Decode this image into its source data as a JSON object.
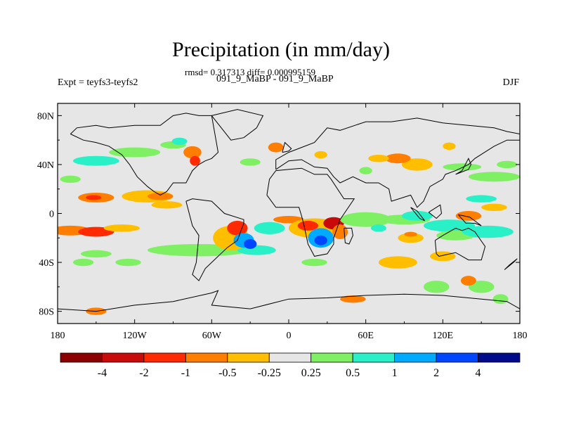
{
  "chart_data": {
    "type": "heatmap",
    "title": "Precipitation (in mm/day)",
    "subtitle": "rmsd= 0.317313 diff= 0.000995159",
    "left_label": "Expt = teyfs3-teyfs2",
    "center_label": "091_9_MaBP - 091_9_MaBP",
    "right_label": "DJF",
    "xlim": [
      -180,
      180
    ],
    "ylim": [
      -90,
      90
    ],
    "x_ticks": [
      {
        "value": -180,
        "label": "180"
      },
      {
        "value": -120,
        "label": "120W"
      },
      {
        "value": -60,
        "label": "60W"
      },
      {
        "value": 0,
        "label": "0"
      },
      {
        "value": 60,
        "label": "60E"
      },
      {
        "value": 120,
        "label": "120E"
      },
      {
        "value": 180,
        "label": "180"
      }
    ],
    "y_ticks": [
      {
        "value": 80,
        "label": "80N"
      },
      {
        "value": 40,
        "label": "40N"
      },
      {
        "value": 0,
        "label": "0"
      },
      {
        "value": -40,
        "label": "40S"
      },
      {
        "value": -80,
        "label": "80S"
      }
    ],
    "colorbar": {
      "colors": [
        "#8b0000",
        "#c80a0a",
        "#ff2a00",
        "#ff7e00",
        "#ffbe00",
        "#e6e6e6",
        "#7ff064",
        "#2af0c8",
        "#00aaff",
        "#0045ff",
        "#000a8b"
      ],
      "labels": [
        "-4",
        "-2",
        "-1",
        "-0.5",
        "-0.25",
        "0.25",
        "0.5",
        "1",
        "2",
        "4"
      ]
    },
    "background_color": "#e6e6e6",
    "anomaly_patches": [
      {
        "lon": -170,
        "lat": -14,
        "rx": 16,
        "ry": 4,
        "level": 3
      },
      {
        "lon": -150,
        "lat": -15,
        "rx": 14,
        "ry": 4,
        "level": 2
      },
      {
        "lon": -130,
        "lat": -12,
        "rx": 14,
        "ry": 3,
        "level": 4
      },
      {
        "lon": -150,
        "lat": 13,
        "rx": 14,
        "ry": 4,
        "level": 3
      },
      {
        "lon": -152,
        "lat": 13,
        "rx": 6,
        "ry": 2,
        "level": 2
      },
      {
        "lon": -110,
        "lat": 14,
        "rx": 20,
        "ry": 5,
        "level": 4
      },
      {
        "lon": -100,
        "lat": 14,
        "rx": 10,
        "ry": 3,
        "level": 3
      },
      {
        "lon": -95,
        "lat": 7,
        "rx": 12,
        "ry": 3,
        "level": 4
      },
      {
        "lon": -170,
        "lat": 28,
        "rx": 8,
        "ry": 3,
        "level": 6
      },
      {
        "lon": -150,
        "lat": 43,
        "rx": 18,
        "ry": 4,
        "level": 7
      },
      {
        "lon": -120,
        "lat": 50,
        "rx": 20,
        "ry": 4,
        "level": 6
      },
      {
        "lon": -90,
        "lat": 56,
        "rx": 10,
        "ry": 3,
        "level": 6
      },
      {
        "lon": -75,
        "lat": 50,
        "rx": 7,
        "ry": 5,
        "level": 3
      },
      {
        "lon": -73,
        "lat": 43,
        "rx": 4,
        "ry": 4,
        "level": 2
      },
      {
        "lon": -85,
        "lat": 59,
        "rx": 6,
        "ry": 3,
        "level": 7
      },
      {
        "lon": -10,
        "lat": 54,
        "rx": 6,
        "ry": 4,
        "level": 3
      },
      {
        "lon": 25,
        "lat": 48,
        "rx": 5,
        "ry": 3,
        "level": 4
      },
      {
        "lon": -30,
        "lat": 42,
        "rx": 8,
        "ry": 3,
        "level": 6
      },
      {
        "lon": -70,
        "lat": -30,
        "rx": 40,
        "ry": 5,
        "level": 6
      },
      {
        "lon": -25,
        "lat": -30,
        "rx": 15,
        "ry": 4,
        "level": 7
      },
      {
        "lon": -45,
        "lat": -20,
        "rx": 14,
        "ry": 10,
        "level": 4
      },
      {
        "lon": -40,
        "lat": -12,
        "rx": 8,
        "ry": 6,
        "level": 2
      },
      {
        "lon": -35,
        "lat": -22,
        "rx": 8,
        "ry": 6,
        "level": 8
      },
      {
        "lon": -30,
        "lat": -25,
        "rx": 5,
        "ry": 4,
        "level": 9
      },
      {
        "lon": -15,
        "lat": -12,
        "rx": 12,
        "ry": 5,
        "level": 7
      },
      {
        "lon": 0,
        "lat": -5,
        "rx": 12,
        "ry": 3,
        "level": 3
      },
      {
        "lon": 20,
        "lat": -12,
        "rx": 20,
        "ry": 8,
        "level": 4
      },
      {
        "lon": 15,
        "lat": -10,
        "rx": 8,
        "ry": 4,
        "level": 2
      },
      {
        "lon": 35,
        "lat": -8,
        "rx": 8,
        "ry": 5,
        "level": 1
      },
      {
        "lon": 25,
        "lat": -20,
        "rx": 10,
        "ry": 8,
        "level": 8
      },
      {
        "lon": 25,
        "lat": -22,
        "rx": 5,
        "ry": 4,
        "level": 9
      },
      {
        "lon": 40,
        "lat": -15,
        "rx": 6,
        "ry": 6,
        "level": 3
      },
      {
        "lon": 60,
        "lat": -5,
        "rx": 20,
        "ry": 6,
        "level": 6
      },
      {
        "lon": 70,
        "lat": -12,
        "rx": 6,
        "ry": 3,
        "level": 7
      },
      {
        "lon": 95,
        "lat": -20,
        "rx": 10,
        "ry": 4,
        "level": 4
      },
      {
        "lon": 95,
        "lat": -17,
        "rx": 5,
        "ry": 2,
        "level": 3
      },
      {
        "lon": 90,
        "lat": -5,
        "rx": 20,
        "ry": 4,
        "level": 6
      },
      {
        "lon": 100,
        "lat": -2,
        "rx": 12,
        "ry": 4,
        "level": 7
      },
      {
        "lon": 125,
        "lat": -10,
        "rx": 20,
        "ry": 5,
        "level": 7
      },
      {
        "lon": 130,
        "lat": -18,
        "rx": 15,
        "ry": 4,
        "level": 6
      },
      {
        "lon": 155,
        "lat": -15,
        "rx": 20,
        "ry": 5,
        "level": 7
      },
      {
        "lon": 140,
        "lat": -2,
        "rx": 10,
        "ry": 4,
        "level": 3
      },
      {
        "lon": 160,
        "lat": 5,
        "rx": 10,
        "ry": 3,
        "level": 4
      },
      {
        "lon": 150,
        "lat": 12,
        "rx": 12,
        "ry": 3,
        "level": 7
      },
      {
        "lon": 160,
        "lat": 30,
        "rx": 20,
        "ry": 4,
        "level": 6
      },
      {
        "lon": 135,
        "lat": 38,
        "rx": 15,
        "ry": 3,
        "level": 6
      },
      {
        "lon": 170,
        "lat": 40,
        "rx": 8,
        "ry": 3,
        "level": 6
      },
      {
        "lon": 100,
        "lat": 40,
        "rx": 12,
        "ry": 5,
        "level": 4
      },
      {
        "lon": 85,
        "lat": 45,
        "rx": 10,
        "ry": 4,
        "level": 3
      },
      {
        "lon": 70,
        "lat": 45,
        "rx": 8,
        "ry": 3,
        "level": 4
      },
      {
        "lon": 60,
        "lat": 35,
        "rx": 5,
        "ry": 3,
        "level": 6
      },
      {
        "lon": 125,
        "lat": 55,
        "rx": 5,
        "ry": 3,
        "level": 4
      },
      {
        "lon": 85,
        "lat": -40,
        "rx": 15,
        "ry": 5,
        "level": 4
      },
      {
        "lon": 120,
        "lat": -35,
        "rx": 10,
        "ry": 4,
        "level": 4
      },
      {
        "lon": 115,
        "lat": -60,
        "rx": 10,
        "ry": 5,
        "level": 6
      },
      {
        "lon": 150,
        "lat": -60,
        "rx": 10,
        "ry": 5,
        "level": 6
      },
      {
        "lon": 140,
        "lat": -55,
        "rx": 6,
        "ry": 4,
        "level": 3
      },
      {
        "lon": 165,
        "lat": -70,
        "rx": 6,
        "ry": 4,
        "level": 6
      },
      {
        "lon": -150,
        "lat": -80,
        "rx": 8,
        "ry": 3,
        "level": 3
      },
      {
        "lon": -150,
        "lat": -33,
        "rx": 12,
        "ry": 3,
        "level": 6
      },
      {
        "lon": -125,
        "lat": -40,
        "rx": 10,
        "ry": 3,
        "level": 6
      },
      {
        "lon": -160,
        "lat": -40,
        "rx": 8,
        "ry": 3,
        "level": 6
      },
      {
        "lon": 20,
        "lat": -40,
        "rx": 10,
        "ry": 3,
        "level": 6
      },
      {
        "lon": 50,
        "lat": -70,
        "rx": 10,
        "ry": 3,
        "level": 3
      }
    ],
    "coastlines": [
      {
        "name": "north-america",
        "lon": [
          -170,
          -165,
          -150,
          -140,
          -120,
          -100,
          -90,
          -80,
          -70,
          -60,
          -55,
          -60,
          -65,
          -70,
          -75,
          -80,
          -90,
          -95,
          -100,
          -105,
          -110,
          -118,
          -124,
          -130,
          -140,
          -150,
          -160,
          -170
        ],
        "lat": [
          65,
          70,
          72,
          70,
          72,
          72,
          80,
          82,
          80,
          80,
          50,
          45,
          43,
          40,
          35,
          25,
          25,
          18,
          15,
          18,
          22,
          30,
          40,
          48,
          55,
          58,
          60,
          65
        ]
      },
      {
        "name": "greenland",
        "lon": [
          -60,
          -40,
          -20,
          -25,
          -35,
          -45,
          -60
        ],
        "lat": [
          80,
          85,
          80,
          70,
          62,
          60,
          80
        ]
      },
      {
        "name": "south-america",
        "lon": [
          -80,
          -75,
          -60,
          -50,
          -35,
          -35,
          -40,
          -48,
          -58,
          -65,
          -70,
          -75,
          -72,
          -70,
          -75,
          -80
        ],
        "lat": [
          10,
          12,
          10,
          0,
          -5,
          -8,
          -22,
          -28,
          -38,
          -45,
          -55,
          -50,
          -40,
          -18,
          -10,
          10
        ]
      },
      {
        "name": "eurasia",
        "lon": [
          -10,
          -10,
          0,
          10,
          20,
          30,
          40,
          60,
          80,
          100,
          120,
          140,
          160,
          170,
          180,
          180,
          170,
          160,
          145,
          140,
          130,
          122,
          120,
          110,
          105,
          100,
          95,
          80,
          78,
          70,
          60,
          50,
          40,
          35,
          30,
          20,
          10,
          0,
          -10
        ],
        "lat": [
          36,
          44,
          50,
          54,
          58,
          70,
          68,
          75,
          75,
          78,
          74,
          72,
          70,
          67,
          65,
          60,
          60,
          55,
          45,
          40,
          35,
          32,
          28,
          22,
          10,
          5,
          15,
          10,
          20,
          25,
          25,
          30,
          25,
          30,
          37,
          38,
          44,
          43,
          36
        ]
      },
      {
        "name": "africa",
        "lon": [
          -17,
          -15,
          -10,
          0,
          10,
          20,
          30,
          33,
          43,
          51,
          40,
          35,
          35,
          30,
          20,
          15,
          12,
          10,
          8,
          0,
          -10,
          -17
        ],
        "lat": [
          15,
          28,
          35,
          36,
          37,
          32,
          32,
          28,
          12,
          12,
          -5,
          -20,
          -25,
          -33,
          -35,
          -25,
          -10,
          -2,
          5,
          5,
          5,
          15
        ]
      },
      {
        "name": "australia",
        "lon": [
          114,
          120,
          130,
          135,
          140,
          145,
          153,
          150,
          140,
          130,
          117,
          115,
          114
        ],
        "lat": [
          -22,
          -18,
          -12,
          -14,
          -12,
          -15,
          -27,
          -38,
          -38,
          -32,
          -35,
          -33,
          -22
        ]
      },
      {
        "name": "antarctica",
        "lon": [
          -180,
          -150,
          -120,
          -90,
          -60,
          -55,
          -60,
          -30,
          0,
          30,
          60,
          90,
          120,
          150,
          170,
          180
        ],
        "lat": [
          -78,
          -80,
          -75,
          -72,
          -65,
          -63,
          -75,
          -78,
          -70,
          -69,
          -67,
          -66,
          -67,
          -70,
          -72,
          -78
        ]
      },
      {
        "name": "madagascar",
        "lon": [
          43,
          49,
          50,
          47,
          44,
          43
        ],
        "lat": [
          -12,
          -12,
          -18,
          -25,
          -24,
          -12
        ]
      },
      {
        "name": "uk",
        "lon": [
          -5,
          0,
          2,
          -3,
          -5
        ],
        "lat": [
          50,
          51,
          53,
          58,
          50
        ]
      },
      {
        "name": "japan",
        "lon": [
          130,
          135,
          140,
          142,
          140,
          135,
          130
        ],
        "lat": [
          32,
          34,
          36,
          40,
          45,
          35,
          32
        ]
      },
      {
        "name": "new-zealand",
        "lon": [
          168,
          175,
          178,
          172,
          168
        ],
        "lat": [
          -46,
          -40,
          -37,
          -42,
          -46
        ]
      },
      {
        "name": "new-guinea",
        "lon": [
          132,
          141,
          150,
          145,
          138,
          132
        ],
        "lat": [
          -1,
          -3,
          -10,
          -8,
          -8,
          -1
        ]
      },
      {
        "name": "borneo",
        "lon": [
          109,
          118,
          119,
          115,
          109
        ],
        "lat": [
          1,
          7,
          0,
          -4,
          1
        ]
      },
      {
        "name": "sumatra",
        "lon": [
          95,
          100,
          106,
          102,
          95
        ],
        "lat": [
          5,
          2,
          -6,
          -4,
          5
        ]
      }
    ]
  }
}
